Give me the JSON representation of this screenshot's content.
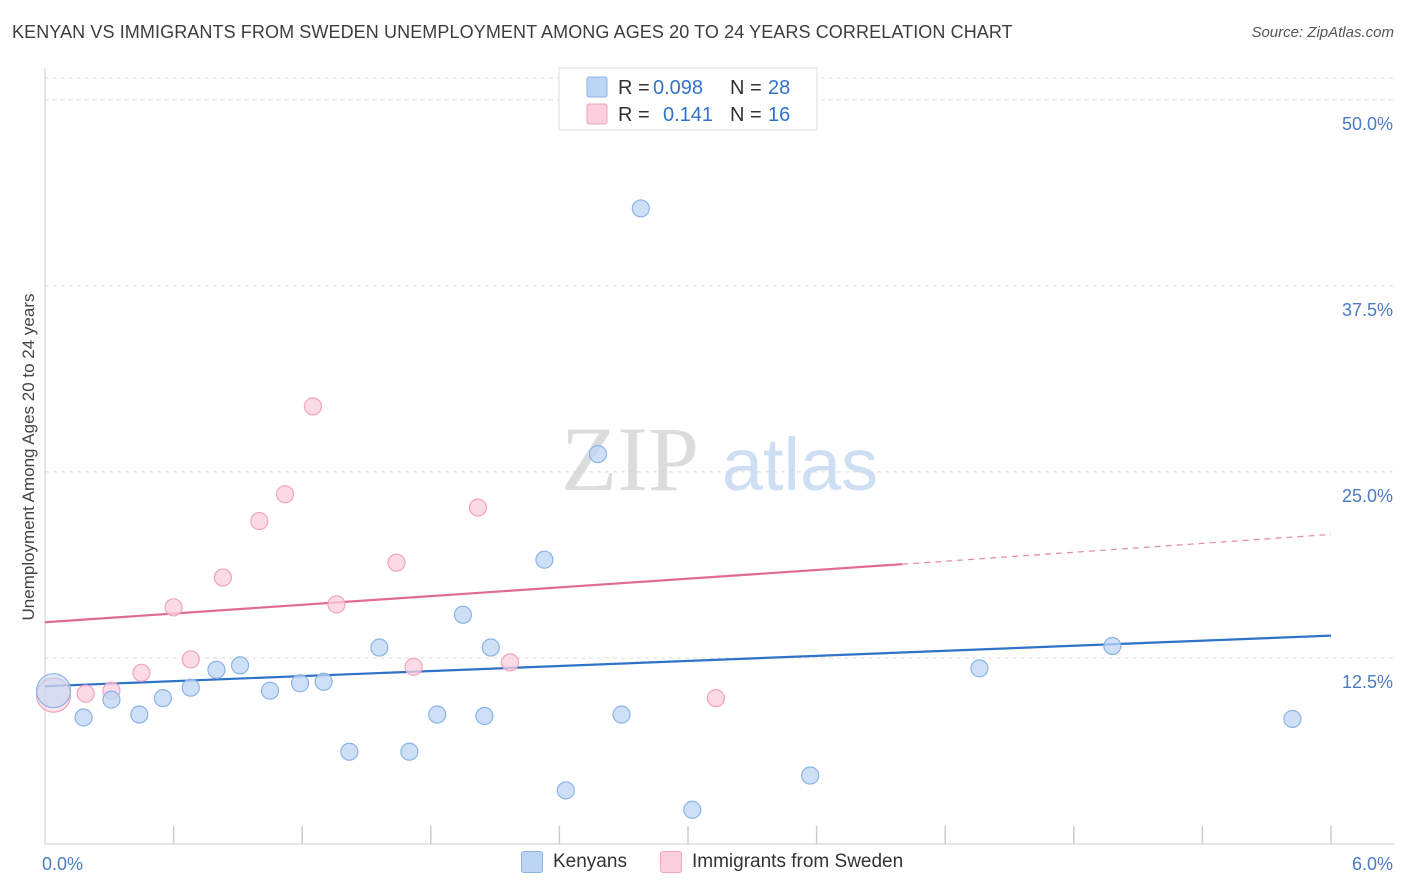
{
  "title": "KENYAN VS IMMIGRANTS FROM SWEDEN UNEMPLOYMENT AMONG AGES 20 TO 24 YEARS CORRELATION CHART",
  "source": "Source: ZipAtlas.com",
  "watermark": {
    "zip": "ZIP",
    "atlas": "atlas"
  },
  "colors": {
    "kenyan_fill": "#bcd5f5",
    "kenyan_stroke": "#8cb3e6",
    "kenyan_line": "#2f73c9",
    "sweden_fill": "#fbcfdd",
    "sweden_stroke": "#f2a3bd",
    "sweden_line": "#e06a94",
    "grid": "#dddddd",
    "axis_text": "#4a7cc4"
  },
  "legend": {
    "rows": [
      {
        "r_label": "R =",
        "r_value": "0.098",
        "n_label": "N =",
        "n_value": "28"
      },
      {
        "r_label": "R =",
        "r_value": "0.141",
        "n_label": "N =",
        "n_value": "16"
      }
    ]
  },
  "bottom_legend": {
    "kenyans": "Kenyans",
    "sweden": "Immigrants from Sweden"
  },
  "chart_data": {
    "type": "scatter",
    "ylabel": "Unemployment Among Ages 20 to 24 years",
    "xlabel": "",
    "xlim": [
      0,
      6
    ],
    "ylim": [
      0,
      52
    ],
    "x_tick_labels": [
      {
        "value": 0,
        "label": "0.0%"
      },
      {
        "value": 6,
        "label": "6.0%"
      }
    ],
    "y_ticks": [
      {
        "value": 12.5,
        "label": "12.5%"
      },
      {
        "value": 25.0,
        "label": "25.0%"
      },
      {
        "value": 37.5,
        "label": "37.5%"
      },
      {
        "value": 50.0,
        "label": "50.0%"
      }
    ],
    "series": [
      {
        "name": "Kenyans",
        "R": 0.098,
        "N": 28,
        "points": [
          [
            0.04,
            10.3,
            "large"
          ],
          [
            0.18,
            8.5
          ],
          [
            0.31,
            9.7
          ],
          [
            0.44,
            8.7
          ],
          [
            0.55,
            9.8
          ],
          [
            0.68,
            10.5
          ],
          [
            0.8,
            11.7
          ],
          [
            0.91,
            12.0
          ],
          [
            1.05,
            10.3
          ],
          [
            1.19,
            10.8
          ],
          [
            1.3,
            10.9
          ],
          [
            1.42,
            6.2
          ],
          [
            1.56,
            13.2
          ],
          [
            1.7,
            6.2
          ],
          [
            1.83,
            8.7
          ],
          [
            1.95,
            15.4
          ],
          [
            2.05,
            8.6
          ],
          [
            2.08,
            13.2
          ],
          [
            2.33,
            19.1
          ],
          [
            2.43,
            3.6
          ],
          [
            2.58,
            26.2
          ],
          [
            2.69,
            8.7
          ],
          [
            2.78,
            42.7
          ],
          [
            3.02,
            2.3
          ],
          [
            3.57,
            4.6
          ],
          [
            4.36,
            11.8
          ],
          [
            4.98,
            13.3
          ],
          [
            5.82,
            8.4
          ]
        ],
        "trend": {
          "x0": 0,
          "y0": 10.6,
          "x1": 6,
          "y1": 14.0
        }
      },
      {
        "name": "Immigrants from Sweden",
        "R": 0.141,
        "N": 16,
        "points": [
          [
            0.04,
            10.0,
            "large"
          ],
          [
            0.19,
            10.1
          ],
          [
            0.31,
            10.3
          ],
          [
            0.45,
            11.5
          ],
          [
            0.6,
            15.9
          ],
          [
            0.68,
            12.4
          ],
          [
            0.83,
            17.9
          ],
          [
            1.0,
            21.7
          ],
          [
            1.12,
            23.5
          ],
          [
            1.25,
            29.4
          ],
          [
            1.36,
            16.1
          ],
          [
            1.64,
            18.9
          ],
          [
            1.72,
            11.9
          ],
          [
            2.02,
            22.6
          ],
          [
            2.17,
            12.2
          ],
          [
            3.13,
            9.8
          ]
        ],
        "trend": {
          "x0": 0,
          "y0": 14.9,
          "x1": 4.0,
          "y1": 18.8,
          "x_dash_end": 6,
          "y_dash_end": 20.8
        }
      }
    ]
  }
}
